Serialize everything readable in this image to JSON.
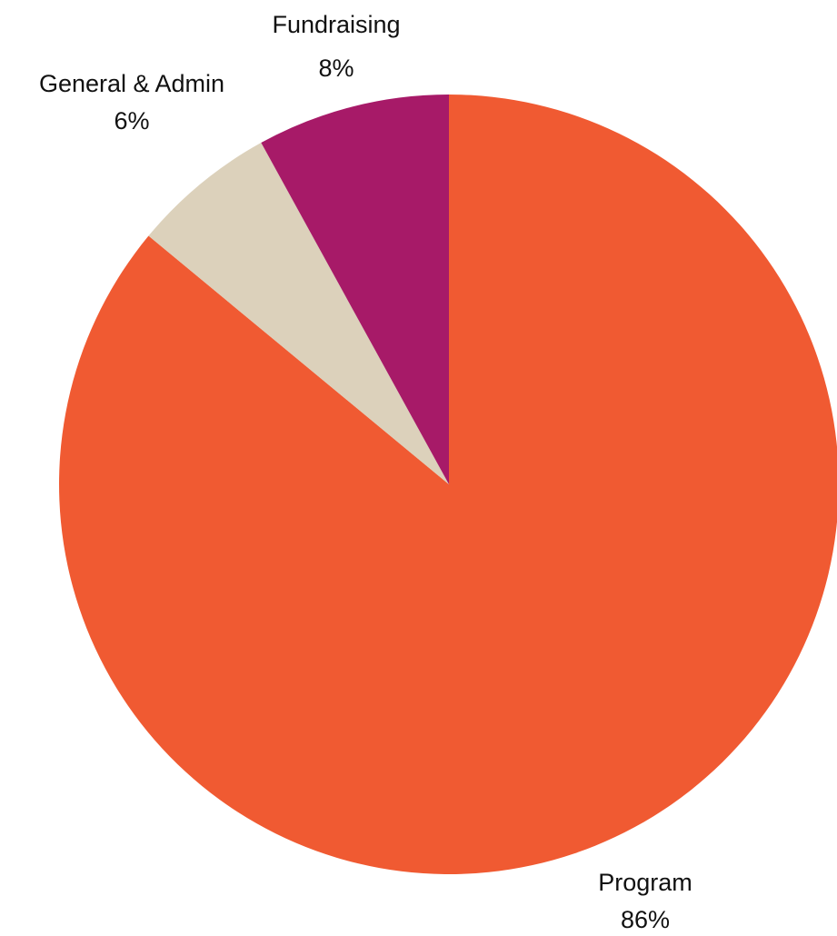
{
  "chart_data": {
    "type": "pie",
    "slices": [
      {
        "label": "Program",
        "value": 86,
        "value_label": "86%",
        "color": "#f05a32"
      },
      {
        "label": "General & Admin",
        "value": 6,
        "value_label": "6%",
        "color": "#dcd1bb"
      },
      {
        "label": "Fundraising",
        "value": 8,
        "value_label": "8%",
        "color": "#a71a68"
      }
    ],
    "start_angle": "12 o'clock",
    "direction": "clockwise",
    "legend": "none"
  }
}
